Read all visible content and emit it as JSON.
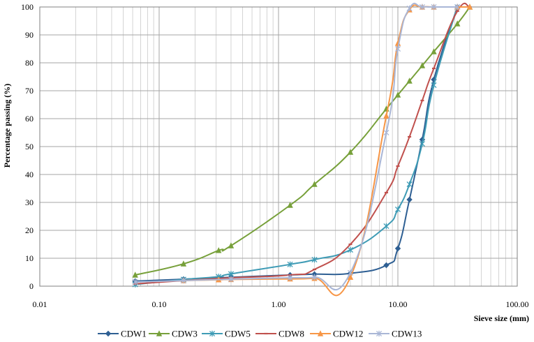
{
  "chart_data": {
    "type": "line",
    "title": "",
    "xlabel": "Sieve size (mm)",
    "ylabel": "Percentage passing (%)",
    "xscale": "log",
    "xlim": [
      0.01,
      100
    ],
    "ylim": [
      0,
      100
    ],
    "xticks": [
      0.01,
      0.1,
      1,
      10,
      100
    ],
    "xtick_labels": [
      "0.01",
      "0.10",
      "1.00",
      "10.00",
      "100.00"
    ],
    "yticks": [
      0,
      10,
      20,
      30,
      40,
      50,
      60,
      70,
      80,
      90,
      100
    ],
    "ytick_labels": [
      "0",
      "10",
      "20",
      "30",
      "40",
      "50",
      "60",
      "70",
      "80",
      "90",
      "100"
    ],
    "grid": "on",
    "legend_position": "bottom",
    "series": [
      {
        "name": "CDW1",
        "color": "#2e5f93",
        "marker": "diamond",
        "x": [
          0.063,
          0.16,
          0.4,
          1.25,
          2,
          4,
          8,
          10,
          12.5,
          16,
          20,
          31.5
        ],
        "y": [
          1.8,
          2.5,
          3.2,
          4.0,
          4.3,
          4.6,
          7.5,
          13.5,
          31,
          52.5,
          74,
          100
        ]
      },
      {
        "name": "CDW3",
        "color": "#77a03a",
        "marker": "triangle",
        "x": [
          0.063,
          0.16,
          0.315,
          0.4,
          1.25,
          2,
          4,
          8,
          10,
          12.5,
          16,
          20,
          31.5,
          40
        ],
        "y": [
          4,
          8,
          12.8,
          14.5,
          29,
          36.5,
          48,
          63.5,
          68.5,
          73.5,
          79,
          84,
          94,
          100
        ]
      },
      {
        "name": "CDW5",
        "color": "#3e9bb5",
        "marker": "star",
        "x": [
          0.063,
          0.16,
          0.315,
          0.4,
          1.25,
          2,
          4,
          8,
          10,
          12.5,
          16,
          20,
          31.5
        ],
        "y": [
          0.6,
          2.4,
          3.4,
          4.4,
          7.8,
          9.5,
          13,
          21.5,
          27.5,
          36.5,
          51,
          72,
          100
        ]
      },
      {
        "name": "CDW8",
        "color": "#c0504d",
        "marker": "dash",
        "x": [
          0.063,
          0.16,
          0.4,
          1.25,
          2,
          4,
          8,
          10,
          12.5,
          16,
          20,
          31.5,
          40
        ],
        "y": [
          0.8,
          2.0,
          3.0,
          4.0,
          6.0,
          15,
          33.5,
          43,
          53.5,
          66.5,
          78,
          98.5,
          100
        ]
      },
      {
        "name": "CDW12",
        "color": "#f79646",
        "marker": "triangle",
        "x": [
          0.16,
          0.315,
          0.4,
          1.25,
          2,
          4,
          8,
          10,
          12.5,
          16,
          20,
          31.5,
          40
        ],
        "y": [
          2.0,
          2.3,
          2.4,
          2.6,
          2.8,
          3.2,
          61,
          87,
          99,
          100,
          100,
          100,
          100
        ]
      },
      {
        "name": "CDW13",
        "color": "#a9b6d6",
        "marker": "star",
        "x": [
          0.063,
          0.16,
          0.4,
          1.25,
          2,
          4,
          8,
          10,
          12.5,
          16,
          20,
          31.5
        ],
        "y": [
          1.5,
          2.0,
          2.5,
          3.0,
          3.2,
          4.8,
          55,
          85,
          99.5,
          100,
          100,
          100
        ]
      }
    ]
  }
}
